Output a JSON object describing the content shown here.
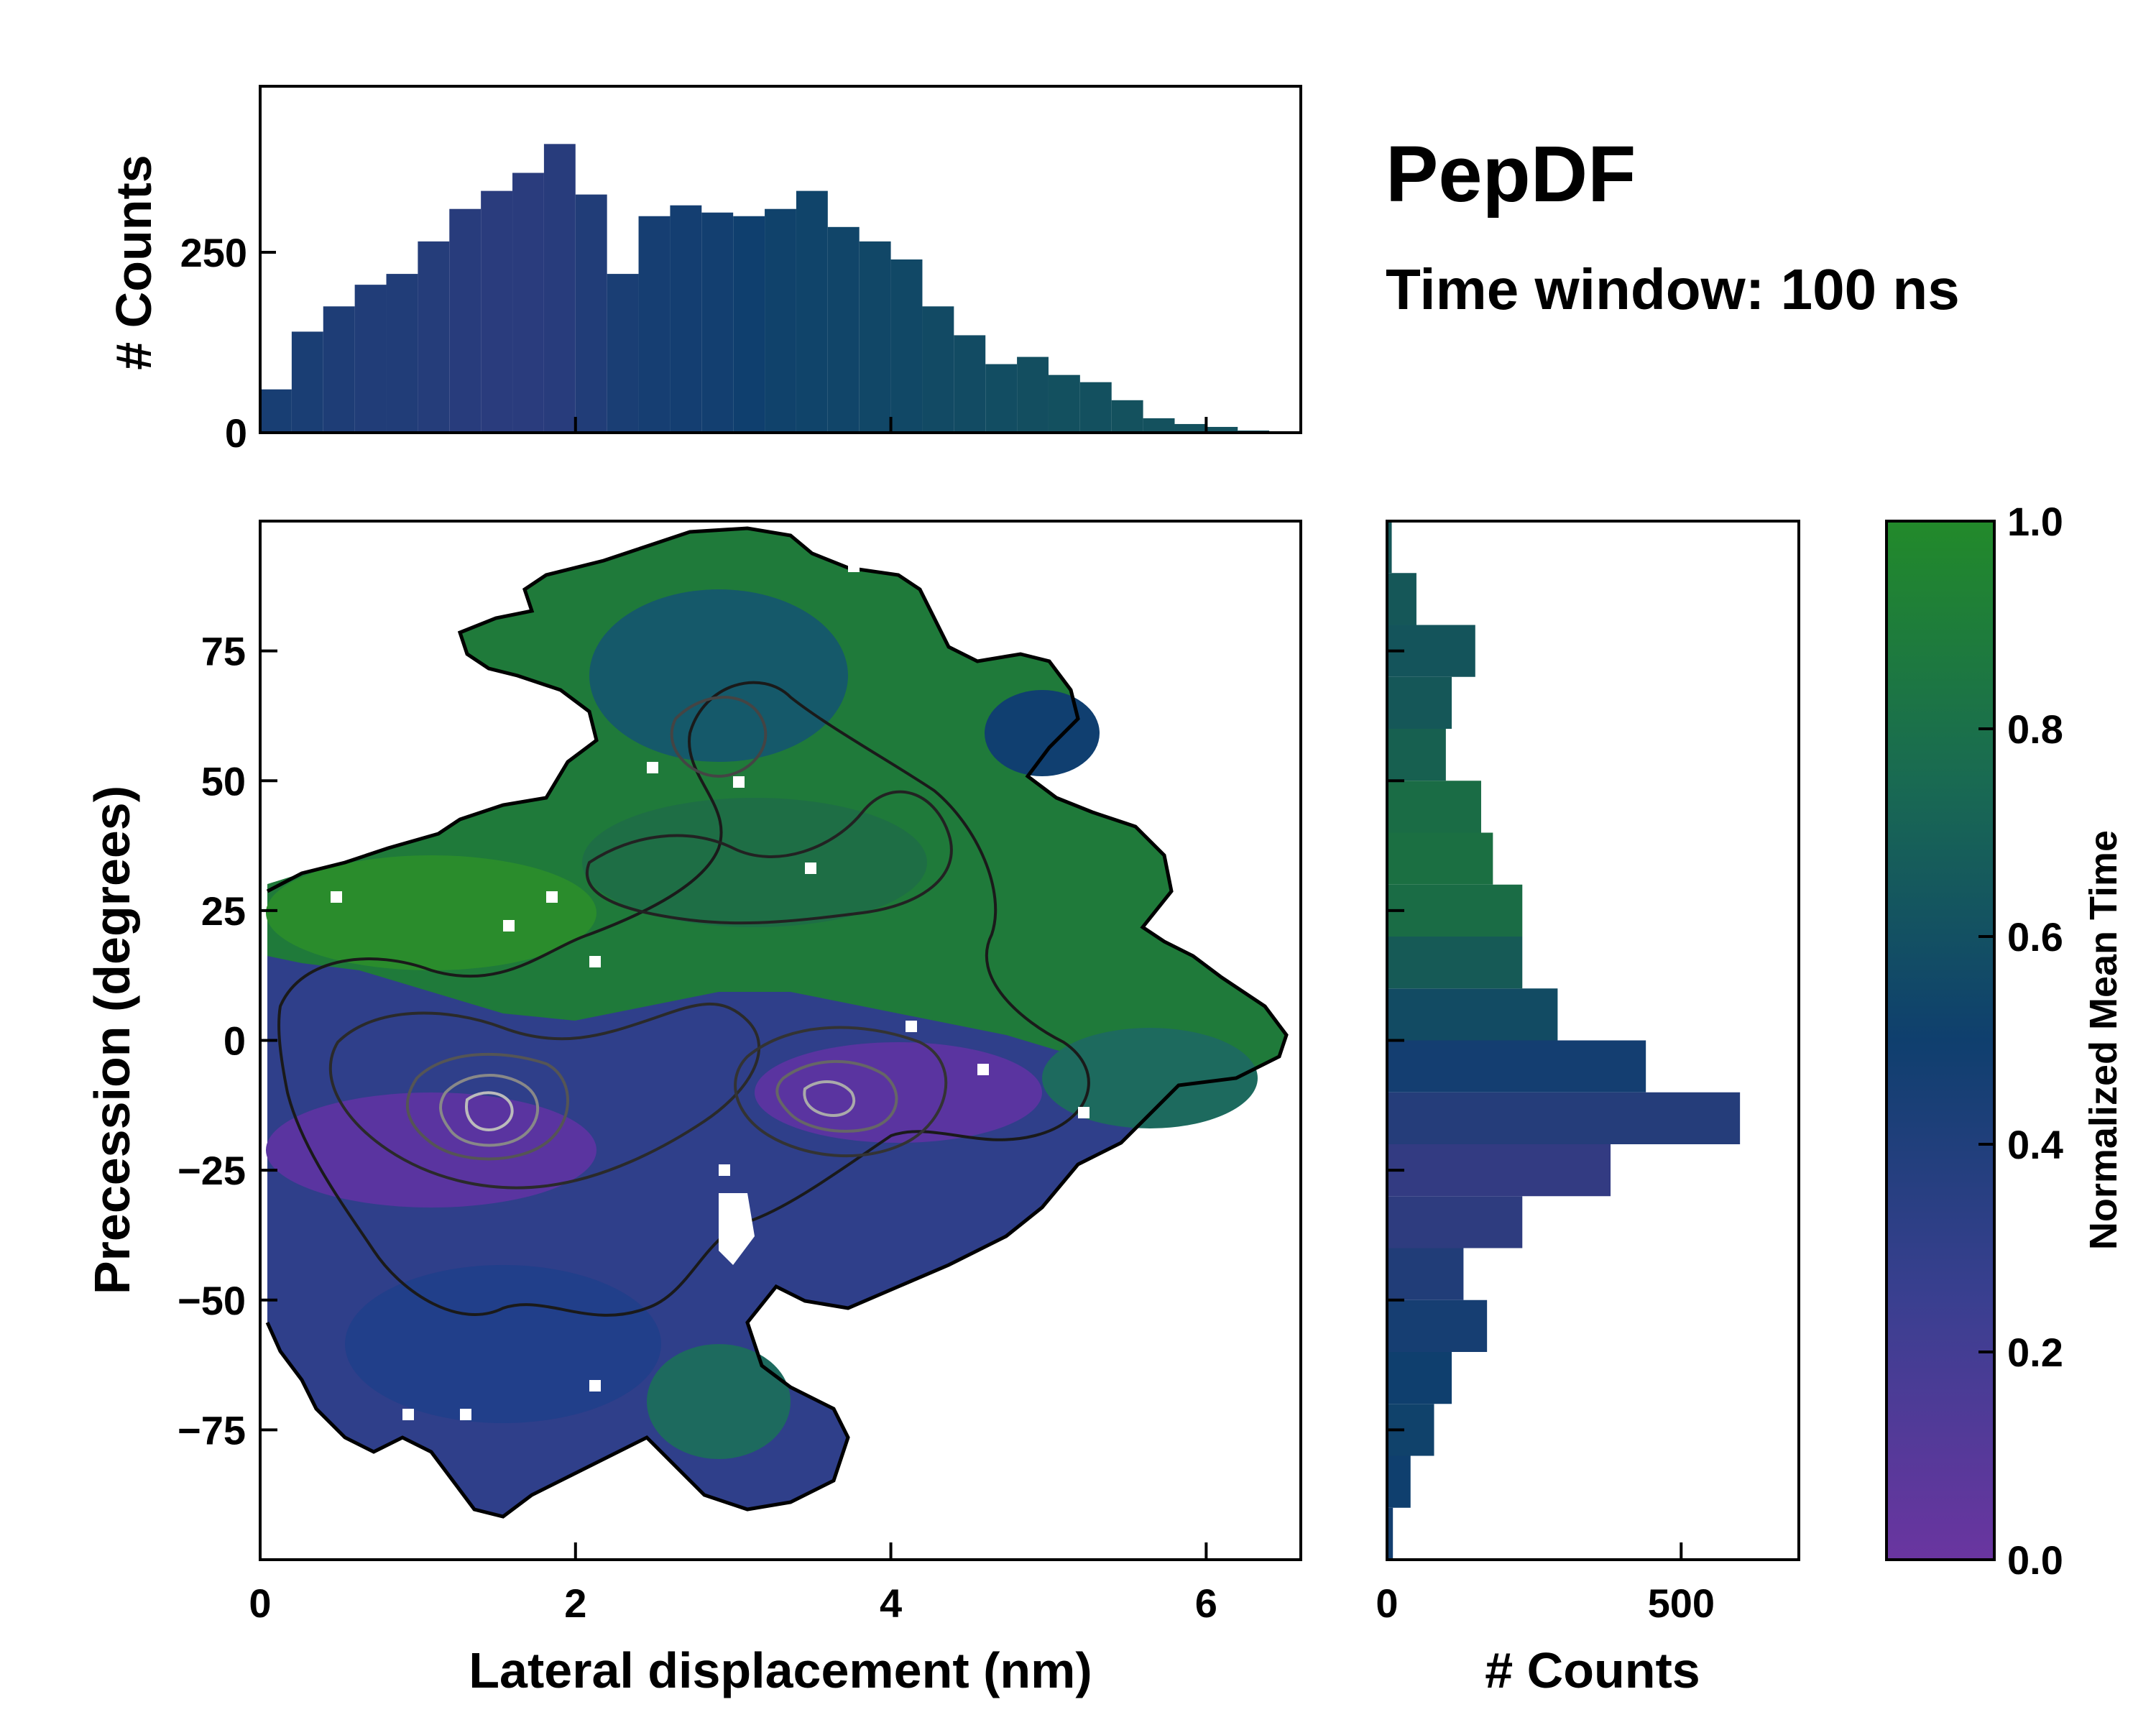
{
  "title": "PepDF",
  "subtitle": "Time window: 100 ns",
  "colors": {
    "low": "#6a35a0",
    "mid": "#0f3f6e",
    "high": "#228a2a",
    "contour_outer": "#000000",
    "contour_inner": "#777777",
    "axis": "#000000"
  },
  "chart_data": [
    {
      "id": "main",
      "type": "heatmap",
      "xlabel": "Lateral displacement (nm)",
      "ylabel": "Precession (degrees)",
      "xlim": [
        0,
        6.6
      ],
      "ylim": [
        -100,
        100
      ],
      "xticks": [
        "0",
        "2",
        "4",
        "6"
      ],
      "yticks": [
        "75",
        "50",
        "25",
        "0",
        "−25",
        "−50",
        "−75"
      ],
      "ytick_values": [
        75,
        50,
        25,
        0,
        -25,
        -50,
        -75
      ],
      "xtick_values": [
        0,
        2,
        4,
        6
      ],
      "note": "2D histogram colored by normalized mean time; high density near (1.5, -12) and (3.6, -13)"
    },
    {
      "id": "top_hist",
      "type": "bar",
      "ylabel": "# Counts",
      "xlim": [
        0,
        6.6
      ],
      "ylim": [
        0,
        480
      ],
      "yticks": [
        "0",
        "250"
      ],
      "ytick_values": [
        0,
        250
      ],
      "x": [
        0.1,
        0.3,
        0.5,
        0.7,
        0.9,
        1.1,
        1.3,
        1.5,
        1.7,
        1.9,
        2.1,
        2.3,
        2.5,
        2.7,
        2.9,
        3.1,
        3.3,
        3.5,
        3.7,
        3.9,
        4.1,
        4.3,
        4.5,
        4.7,
        4.9,
        5.1,
        5.3,
        5.5,
        5.7,
        5.9,
        6.1,
        6.3
      ],
      "values": [
        60,
        140,
        175,
        205,
        220,
        265,
        310,
        335,
        360,
        400,
        330,
        220,
        300,
        315,
        305,
        300,
        310,
        335,
        285,
        265,
        240,
        175,
        135,
        95,
        105,
        80,
        70,
        45,
        20,
        12,
        8,
        3
      ],
      "tint": [
        0.45,
        0.44,
        0.42,
        0.4,
        0.4,
        0.38,
        0.36,
        0.35,
        0.35,
        0.36,
        0.4,
        0.44,
        0.46,
        0.47,
        0.48,
        0.5,
        0.52,
        0.53,
        0.54,
        0.55,
        0.56,
        0.57,
        0.58,
        0.59,
        0.6,
        0.61,
        0.61,
        0.62,
        0.62,
        0.62,
        0.62,
        0.62
      ]
    },
    {
      "id": "right_hist",
      "type": "bar",
      "orientation": "horizontal",
      "xlabel": "# Counts",
      "xlim": [
        0,
        700
      ],
      "ylim": [
        -100,
        100
      ],
      "xticks": [
        "0",
        "500"
      ],
      "xtick_values": [
        0,
        500
      ],
      "y": [
        -95,
        -85,
        -75,
        -65,
        -55,
        -45,
        -35,
        -25,
        -15,
        -5,
        5,
        15,
        25,
        35,
        45,
        55,
        65,
        75,
        85,
        95
      ],
      "values": [
        10,
        40,
        80,
        110,
        170,
        130,
        230,
        380,
        600,
        440,
        290,
        230,
        230,
        180,
        160,
        100,
        110,
        150,
        50,
        8
      ],
      "tint": [
        0.48,
        0.5,
        0.52,
        0.5,
        0.46,
        0.4,
        0.33,
        0.3,
        0.38,
        0.47,
        0.58,
        0.68,
        0.8,
        0.82,
        0.8,
        0.72,
        0.66,
        0.64,
        0.66,
        0.66
      ]
    },
    {
      "id": "colorbar",
      "type": "colorbar",
      "label": "Normalized Mean Time",
      "ticks": [
        "0.0",
        "0.2",
        "0.4",
        "0.6",
        "0.8",
        "1.0"
      ],
      "tick_values": [
        0.0,
        0.2,
        0.4,
        0.6,
        0.8,
        1.0
      ]
    }
  ]
}
